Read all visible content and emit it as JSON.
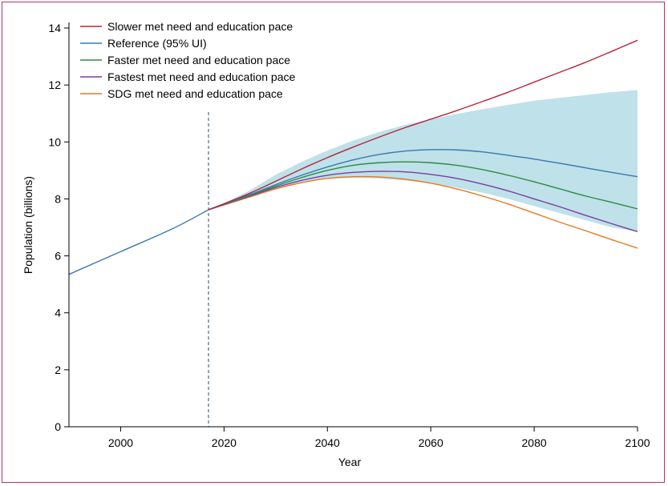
{
  "chart_data": {
    "type": "line",
    "xlabel": "Year",
    "ylabel": "Population (billions)",
    "xlim": [
      1990,
      2100
    ],
    "ylim": [
      0,
      14
    ],
    "x_ticks": [
      2000,
      2020,
      2040,
      2060,
      2080,
      2100
    ],
    "y_ticks": [
      0,
      2,
      4,
      6,
      8,
      10,
      12,
      14
    ],
    "grid": false,
    "legend_position": "top-left",
    "reference_line": {
      "x": 2017,
      "style": "dashed",
      "color": "#1f4e79"
    },
    "history": {
      "name": "",
      "color": "#3a78b0",
      "x": [
        1990,
        2000,
        2010,
        2017
      ],
      "y": [
        5.35,
        6.15,
        6.95,
        7.62
      ]
    },
    "uncertainty_band": {
      "name": "Reference (95% UI)",
      "color": "#bfe1ea",
      "x": [
        2017,
        2020,
        2025,
        2030,
        2035,
        2040,
        2045,
        2050,
        2055,
        2060,
        2065,
        2070,
        2075,
        2080,
        2085,
        2090,
        2095,
        2100
      ],
      "lower": [
        7.62,
        7.8,
        8.1,
        8.38,
        8.58,
        8.7,
        8.74,
        8.72,
        8.65,
        8.55,
        8.4,
        8.22,
        8.0,
        7.75,
        7.5,
        7.25,
        7.0,
        6.85
      ],
      "upper": [
        7.62,
        7.85,
        8.3,
        8.85,
        9.3,
        9.7,
        10.05,
        10.35,
        10.6,
        10.8,
        10.98,
        11.15,
        11.3,
        11.45,
        11.55,
        11.65,
        11.75,
        11.82
      ]
    },
    "series": [
      {
        "name": "Slower met need and education pace",
        "color": "#b5263a",
        "x": [
          2017,
          2020,
          2025,
          2030,
          2035,
          2040,
          2045,
          2050,
          2055,
          2060,
          2065,
          2070,
          2075,
          2080,
          2085,
          2090,
          2095,
          2100
        ],
        "y": [
          7.62,
          7.83,
          8.2,
          8.62,
          9.05,
          9.45,
          9.82,
          10.17,
          10.5,
          10.8,
          11.1,
          11.42,
          11.75,
          12.1,
          12.45,
          12.8,
          13.18,
          13.57
        ]
      },
      {
        "name": "Reference (95% UI)",
        "color": "#3a78b0",
        "x": [
          2017,
          2020,
          2025,
          2030,
          2035,
          2040,
          2045,
          2050,
          2055,
          2060,
          2065,
          2070,
          2075,
          2080,
          2085,
          2090,
          2095,
          2100
        ],
        "y": [
          7.62,
          7.82,
          8.15,
          8.5,
          8.83,
          9.12,
          9.37,
          9.56,
          9.68,
          9.73,
          9.72,
          9.65,
          9.53,
          9.4,
          9.25,
          9.09,
          8.93,
          8.78
        ]
      },
      {
        "name": "Faster met need and education pace",
        "color": "#2e8b3e",
        "x": [
          2017,
          2020,
          2025,
          2030,
          2035,
          2040,
          2045,
          2050,
          2055,
          2060,
          2065,
          2070,
          2075,
          2080,
          2085,
          2090,
          2095,
          2100
        ],
        "y": [
          7.62,
          7.81,
          8.12,
          8.45,
          8.75,
          9.0,
          9.18,
          9.27,
          9.3,
          9.27,
          9.18,
          9.03,
          8.83,
          8.6,
          8.35,
          8.1,
          7.88,
          7.65
        ]
      },
      {
        "name": "Fastest met need and education pace",
        "color": "#7b3f9c",
        "x": [
          2017,
          2020,
          2025,
          2030,
          2035,
          2040,
          2045,
          2050,
          2055,
          2060,
          2065,
          2070,
          2075,
          2080,
          2085,
          2090,
          2095,
          2100
        ],
        "y": [
          7.62,
          7.8,
          8.1,
          8.4,
          8.65,
          8.83,
          8.93,
          8.97,
          8.95,
          8.86,
          8.72,
          8.52,
          8.28,
          8.0,
          7.72,
          7.42,
          7.13,
          6.85
        ]
      },
      {
        "name": "SDG met need and education pace",
        "color": "#e57a22",
        "x": [
          2017,
          2020,
          2025,
          2030,
          2035,
          2040,
          2045,
          2050,
          2055,
          2060,
          2065,
          2070,
          2075,
          2080,
          2085,
          2090,
          2095,
          2100
        ],
        "y": [
          7.62,
          7.79,
          8.07,
          8.35,
          8.57,
          8.72,
          8.78,
          8.77,
          8.69,
          8.55,
          8.35,
          8.1,
          7.82,
          7.5,
          7.18,
          6.88,
          6.57,
          6.27
        ]
      }
    ]
  }
}
